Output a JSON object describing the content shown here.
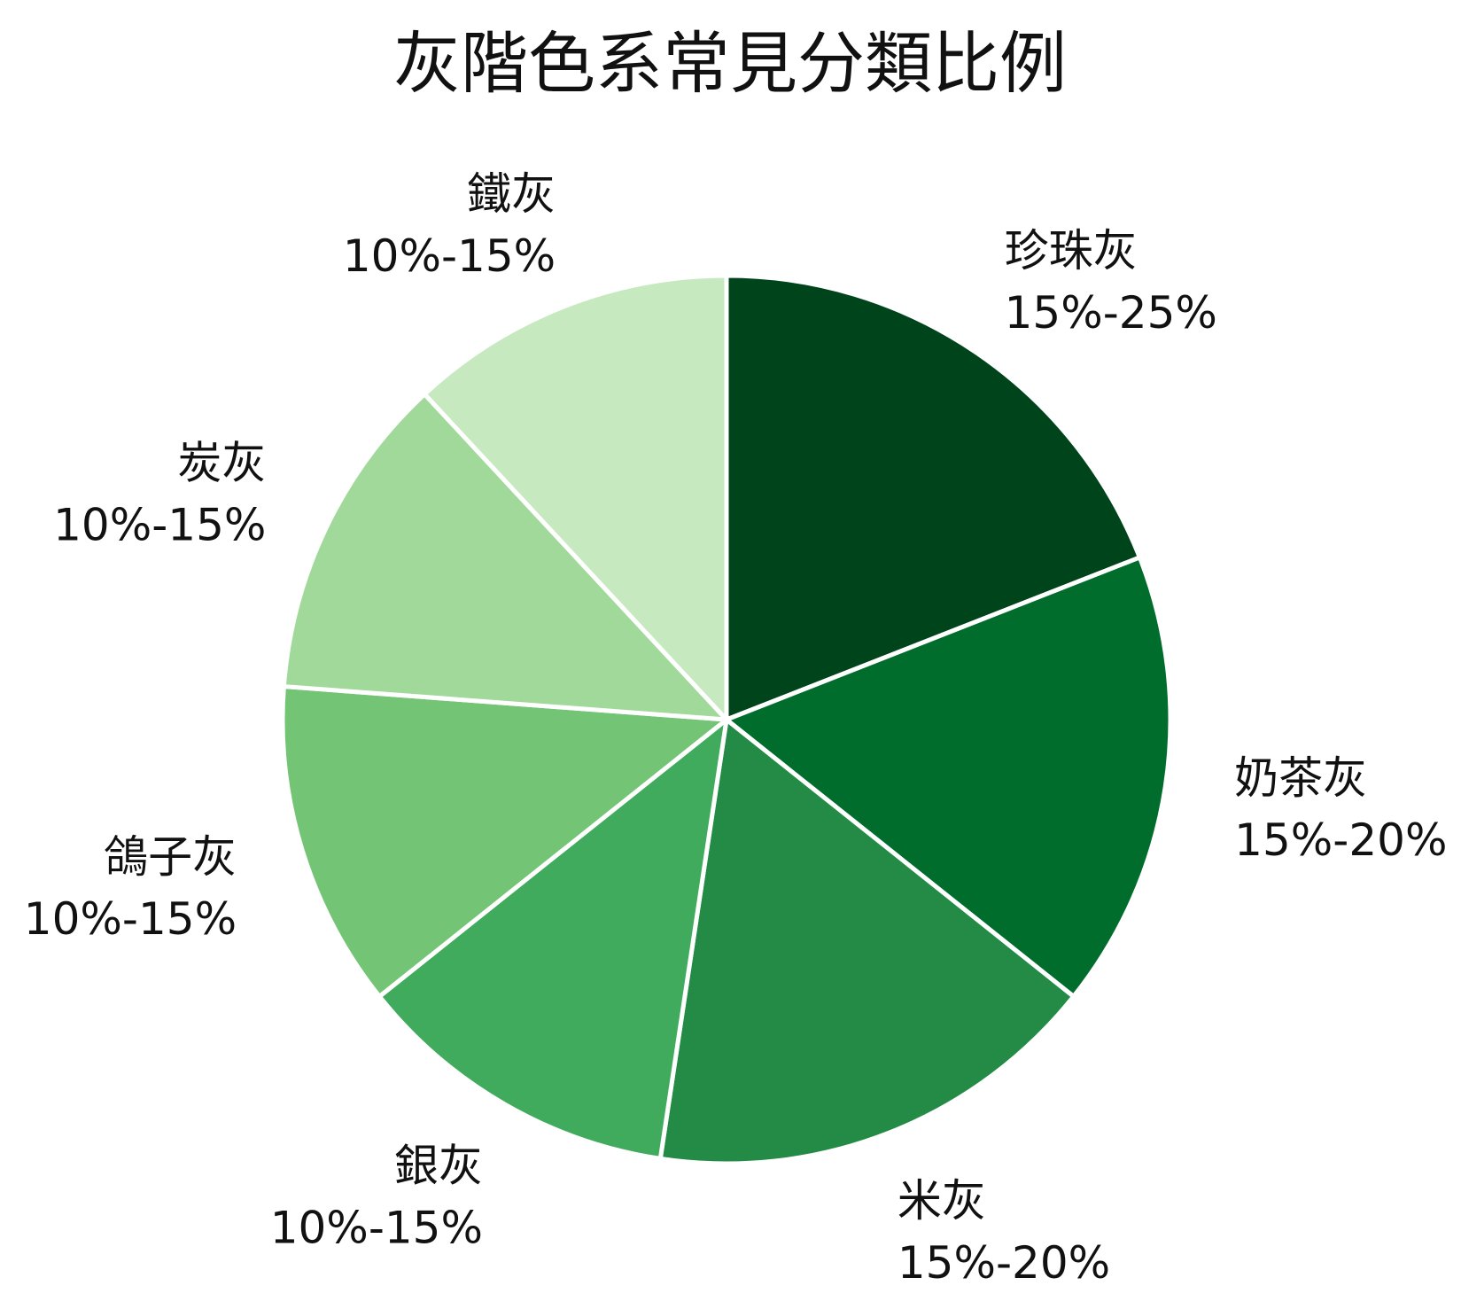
{
  "chart_data": {
    "type": "pie",
    "title": "灰階色系常見分類比例",
    "slices": [
      {
        "label": "珍珠灰",
        "range_text": "15%-25%",
        "value": 20,
        "color": "#00441b"
      },
      {
        "label": "奶茶灰",
        "range_text": "15%-20%",
        "value": 17.5,
        "color": "#006d2c"
      },
      {
        "label": "米灰",
        "range_text": "15%-20%",
        "value": 17.5,
        "color": "#238b45"
      },
      {
        "label": "銀灰",
        "range_text": "10%-15%",
        "value": 12.5,
        "color": "#41ab5d"
      },
      {
        "label": "鴿子灰",
        "range_text": "10%-15%",
        "value": 12.5,
        "color": "#74c476"
      },
      {
        "label": "炭灰",
        "range_text": "10%-15%",
        "value": 12.5,
        "color": "#a1d99b"
      },
      {
        "label": "鐵灰",
        "range_text": "10%-15%",
        "value": 12.5,
        "color": "#c7e9c0"
      }
    ],
    "start_angle_deg": 0,
    "direction": "clockwise",
    "legend": "none"
  }
}
